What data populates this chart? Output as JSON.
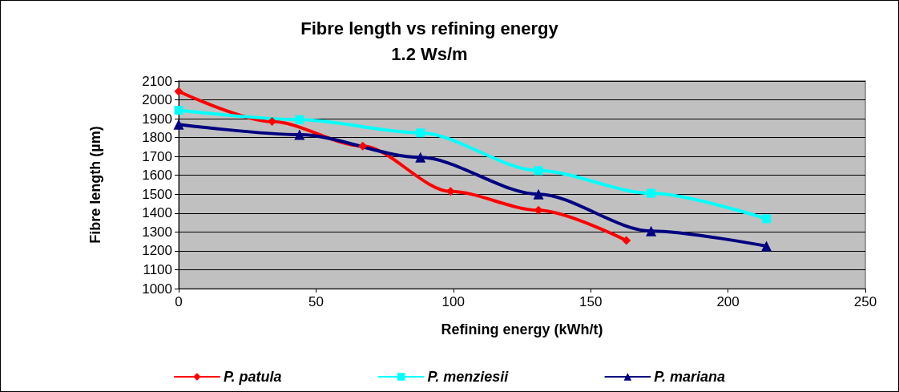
{
  "chart_data": {
    "type": "line",
    "title": "Fibre length vs refining energy",
    "subtitle": "1.2 Ws/m",
    "xlabel": "Refining energy (kWh/t)",
    "ylabel": "Fibre length (µm)",
    "xlim": [
      0,
      250
    ],
    "xticks": [
      0,
      50,
      100,
      150,
      200,
      250
    ],
    "ylim": [
      1000,
      2100
    ],
    "yticks": [
      1000,
      1100,
      1200,
      1300,
      1400,
      1500,
      1600,
      1700,
      1800,
      1900,
      2000,
      2100
    ],
    "grid": "y",
    "legend": "bottom",
    "line_style": "solid",
    "series": [
      {
        "name": "P. patula",
        "color": "#ff0000",
        "marker": "diamond",
        "x": [
          0,
          34,
          67,
          99,
          131,
          163
        ],
        "values": [
          2045,
          1885,
          1755,
          1515,
          1415,
          1255
        ]
      },
      {
        "name": "P. menziesii",
        "color": "#00ffff",
        "marker": "square",
        "x": [
          0,
          44,
          88,
          131,
          172,
          214
        ],
        "values": [
          1945,
          1895,
          1825,
          1625,
          1505,
          1370
        ]
      },
      {
        "name": "P. mariana",
        "color": "#000080",
        "marker": "triangle",
        "x": [
          0,
          44,
          88,
          131,
          172,
          214
        ],
        "values": [
          1870,
          1815,
          1695,
          1500,
          1305,
          1225
        ]
      }
    ]
  }
}
